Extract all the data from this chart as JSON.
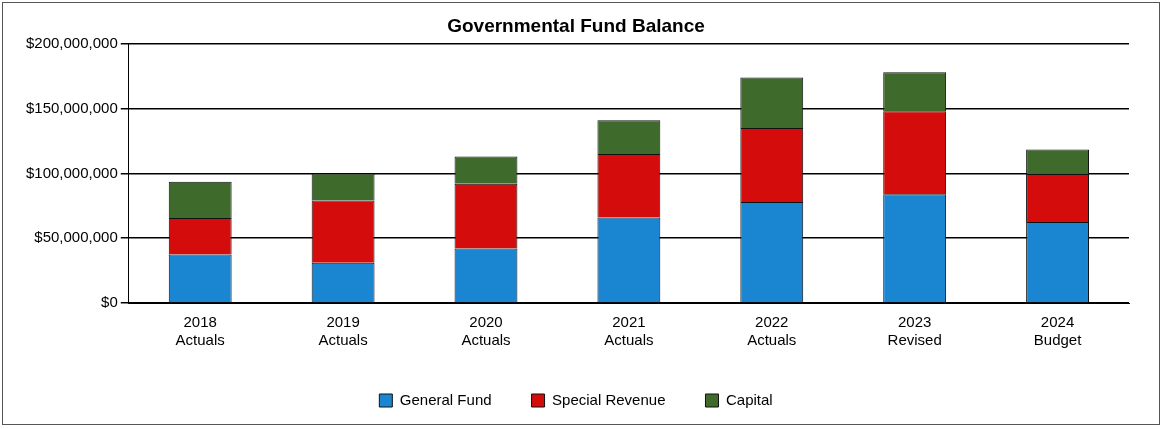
{
  "chart_data": {
    "type": "bar",
    "title": "Governmental Fund Balance",
    "stacked": true,
    "categories": [
      "2018 Actuals",
      "2019 Actuals",
      "2020 Actuals",
      "2021 Actuals",
      "2022 Actuals",
      "2023 Revised",
      "2024 Budget"
    ],
    "series": [
      {
        "name": "General Fund",
        "color": "#1a86d2",
        "values": [
          37500000,
          31000000,
          42000000,
          66000000,
          78000000,
          84000000,
          62500000
        ]
      },
      {
        "name": "Special Revenue",
        "color": "#d40c0c",
        "values": [
          28000000,
          48000000,
          50000000,
          49000000,
          57000000,
          64000000,
          37000000
        ]
      },
      {
        "name": "Capital",
        "color": "#3e6a2c",
        "values": [
          28000000,
          21000000,
          21000000,
          26000000,
          39000000,
          30000000,
          19000000
        ]
      }
    ],
    "ylim": [
      0,
      200000000
    ],
    "yticks": [
      {
        "value": 0,
        "label": "$0"
      },
      {
        "value": 50000000,
        "label": "$50,000,000"
      },
      {
        "value": 100000000,
        "label": "$100,000,000"
      },
      {
        "value": 150000000,
        "label": "$150,000,000"
      },
      {
        "value": 200000000,
        "label": "$200,000,000"
      }
    ],
    "grid": "y",
    "legend": "bottom"
  }
}
